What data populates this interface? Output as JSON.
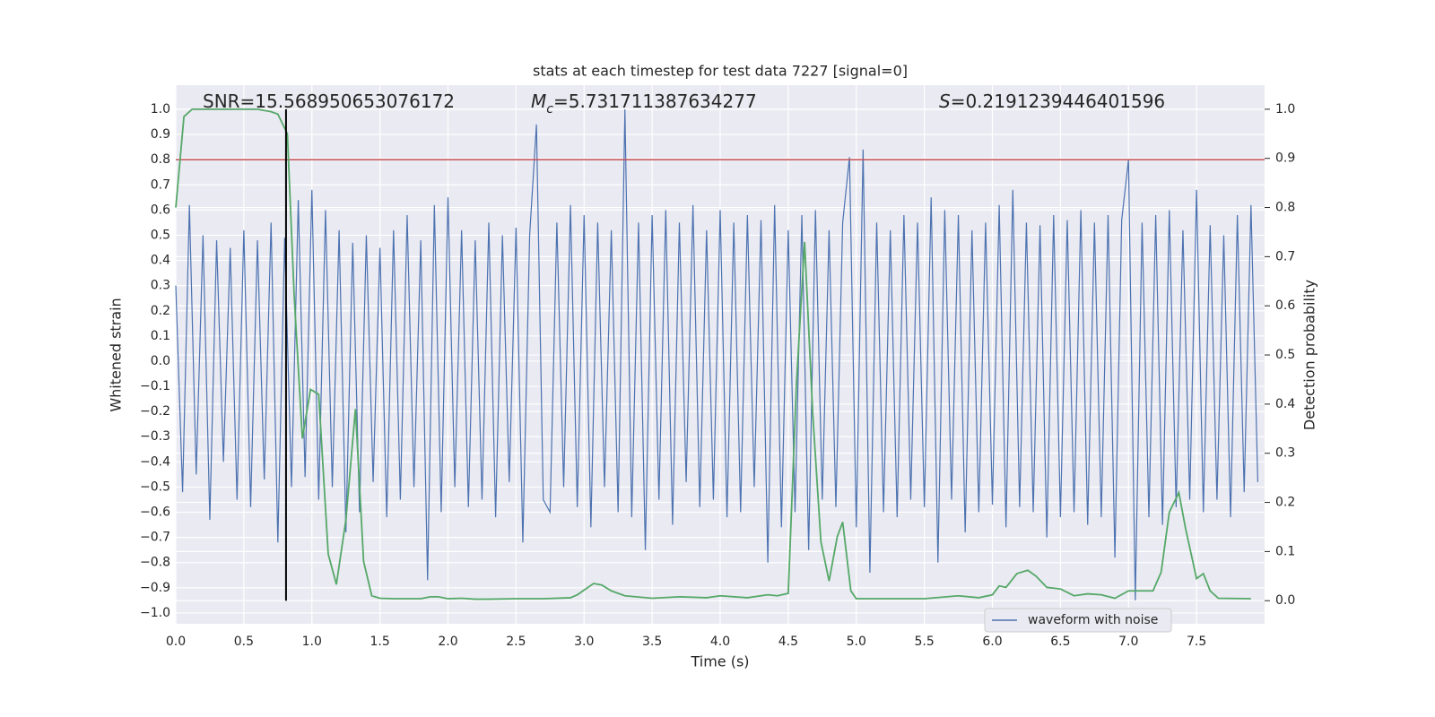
{
  "chart_data": {
    "type": "line",
    "title": "stats at each timestep for test data 7227 [signal=0]",
    "x_label": "Time (s)",
    "y_label": "Whitened strain",
    "y2_label": "Detection probability",
    "annotations": [
      {
        "text": "SNR=15.568950653076172"
      },
      {
        "symbol": "M",
        "sub": "c",
        "text": "=5.731711387634277"
      },
      {
        "symbol": "S",
        "text": "=0.2191239446401596"
      }
    ],
    "xlim": [
      0,
      8
    ],
    "ylim": [
      -1.043,
      1.096
    ],
    "y2lim": [
      -0.047,
      1.049
    ],
    "grid": true,
    "legend": "lower right",
    "xticks": [
      {
        "value": 0,
        "label": "0.0"
      },
      {
        "value": 0.5,
        "label": "0.5"
      },
      {
        "value": 1,
        "label": "1.0"
      },
      {
        "value": 1.5,
        "label": "1.5"
      },
      {
        "value": 2,
        "label": "2.0"
      },
      {
        "value": 2.5,
        "label": "2.5"
      },
      {
        "value": 3,
        "label": "3.0"
      },
      {
        "value": 3.5,
        "label": "3.5"
      },
      {
        "value": 4,
        "label": "4.0"
      },
      {
        "value": 4.5,
        "label": "4.5"
      },
      {
        "value": 5,
        "label": "5.0"
      },
      {
        "value": 5.5,
        "label": "5.5"
      },
      {
        "value": 6,
        "label": "6.0"
      },
      {
        "value": 6.5,
        "label": "6.5"
      },
      {
        "value": 7,
        "label": "7.0"
      },
      {
        "value": 7.5,
        "label": "7.5"
      }
    ],
    "yticks": [
      {
        "value": -1,
        "label": "−1.0"
      },
      {
        "value": -0.9,
        "label": "−0.9"
      },
      {
        "value": -0.8,
        "label": "−0.8"
      },
      {
        "value": -0.7,
        "label": "−0.7"
      },
      {
        "value": -0.6,
        "label": "−0.6"
      },
      {
        "value": -0.5,
        "label": "−0.5"
      },
      {
        "value": -0.4,
        "label": "−0.4"
      },
      {
        "value": -0.3,
        "label": "−0.3"
      },
      {
        "value": -0.2,
        "label": "−0.2"
      },
      {
        "value": -0.1,
        "label": "−0.1"
      },
      {
        "value": 0,
        "label": "0.0"
      },
      {
        "value": 0.1,
        "label": "0.1"
      },
      {
        "value": 0.2,
        "label": "0.2"
      },
      {
        "value": 0.3,
        "label": "0.3"
      },
      {
        "value": 0.4,
        "label": "0.4"
      },
      {
        "value": 0.5,
        "label": "0.5"
      },
      {
        "value": 0.6,
        "label": "0.6"
      },
      {
        "value": 0.7,
        "label": "0.7"
      },
      {
        "value": 0.8,
        "label": "0.8"
      },
      {
        "value": 0.9,
        "label": "0.9"
      },
      {
        "value": 1,
        "label": "1.0"
      }
    ],
    "y2ticks": [
      {
        "value": 0,
        "label": "0.0"
      },
      {
        "value": 0.1,
        "label": "0.1"
      },
      {
        "value": 0.2,
        "label": "0.2"
      },
      {
        "value": 0.3,
        "label": "0.3"
      },
      {
        "value": 0.4,
        "label": "0.4"
      },
      {
        "value": 0.5,
        "label": "0.5"
      },
      {
        "value": 0.6,
        "label": "0.6"
      },
      {
        "value": 0.7,
        "label": "0.7"
      },
      {
        "value": 0.8,
        "label": "0.8"
      },
      {
        "value": 0.9,
        "label": "0.9"
      },
      {
        "value": 1,
        "label": "1.0"
      }
    ],
    "hline": {
      "y": 0.8,
      "color": "#c44e52"
    },
    "vline": {
      "x": 0.81,
      "ymin": 0,
      "ymax": 1,
      "axis": "y2",
      "color": "#000000"
    },
    "series": [
      {
        "name": "waveform with noise",
        "color": "#4c72b0",
        "x": [
          0,
          0.05,
          0.1,
          0.15,
          0.2,
          0.25,
          0.3,
          0.35,
          0.4,
          0.45,
          0.5,
          0.55,
          0.6,
          0.65,
          0.7,
          0.75,
          0.8,
          0.85,
          0.9,
          0.95,
          1,
          1.05,
          1.1,
          1.15,
          1.2,
          1.25,
          1.3,
          1.35,
          1.4,
          1.45,
          1.5,
          1.55,
          1.6,
          1.65,
          1.7,
          1.75,
          1.8,
          1.85,
          1.9,
          1.95,
          2,
          2.05,
          2.1,
          2.15,
          2.2,
          2.25,
          2.3,
          2.35,
          2.4,
          2.45,
          2.5,
          2.55,
          2.6,
          2.65,
          2.7,
          2.75,
          2.8,
          2.85,
          2.9,
          2.95,
          3,
          3.05,
          3.1,
          3.15,
          3.2,
          3.25,
          3.3,
          3.35,
          3.4,
          3.45,
          3.5,
          3.55,
          3.6,
          3.65,
          3.7,
          3.75,
          3.8,
          3.85,
          3.9,
          3.95,
          4,
          4.05,
          4.1,
          4.15,
          4.2,
          4.25,
          4.3,
          4.35,
          4.4,
          4.45,
          4.5,
          4.55,
          4.6,
          4.65,
          4.7,
          4.75,
          4.8,
          4.85,
          4.9,
          4.95,
          5,
          5.05,
          5.1,
          5.15,
          5.2,
          5.25,
          5.3,
          5.35,
          5.4,
          5.45,
          5.5,
          5.55,
          5.6,
          5.65,
          5.7,
          5.75,
          5.8,
          5.85,
          5.9,
          5.95,
          6,
          6.05,
          6.1,
          6.15,
          6.2,
          6.25,
          6.3,
          6.35,
          6.4,
          6.45,
          6.5,
          6.55,
          6.6,
          6.65,
          6.7,
          6.75,
          6.8,
          6.85,
          6.9,
          6.95,
          7,
          7.05,
          7.1,
          7.15,
          7.2,
          7.25,
          7.3,
          7.35,
          7.4,
          7.45,
          7.5,
          7.55,
          7.6,
          7.65,
          7.7,
          7.75,
          7.8,
          7.85,
          7.9,
          7.95
        ],
        "values": [
          0.3,
          -0.52,
          0.62,
          -0.45,
          0.5,
          -0.63,
          0.48,
          -0.4,
          0.45,
          -0.55,
          0.52,
          -0.58,
          0.48,
          -0.47,
          0.55,
          -0.72,
          0.49,
          -0.5,
          0.64,
          -0.46,
          0.68,
          -0.55,
          0.6,
          -0.5,
          0.52,
          -0.68,
          0.47,
          -0.6,
          0.5,
          -0.48,
          0.45,
          -0.62,
          0.52,
          -0.55,
          0.58,
          -0.5,
          0.48,
          -0.87,
          0.62,
          -0.6,
          0.65,
          -0.5,
          0.52,
          -0.58,
          0.48,
          -0.55,
          0.55,
          -0.62,
          0.5,
          -0.48,
          0.53,
          -0.72,
          0.5,
          0.94,
          -0.55,
          -0.6,
          0.55,
          -0.5,
          0.62,
          -0.58,
          0.58,
          -0.66,
          0.55,
          -0.5,
          0.52,
          -0.6,
          1.0,
          -0.62,
          0.55,
          -0.75,
          0.58,
          -0.55,
          0.6,
          -0.65,
          0.55,
          -0.48,
          0.62,
          -0.58,
          0.52,
          -0.55,
          0.6,
          -0.62,
          0.55,
          -0.6,
          0.58,
          -0.5,
          0.56,
          -0.8,
          0.62,
          -0.66,
          0.52,
          -0.6,
          0.58,
          -0.75,
          0.6,
          -0.55,
          0.52,
          -0.58,
          0.55,
          0.81,
          -0.66,
          0.84,
          -0.84,
          0.55,
          -0.6,
          0.52,
          -0.62,
          0.58,
          -0.55,
          0.55,
          -0.58,
          0.65,
          -0.8,
          0.6,
          -0.55,
          0.58,
          -0.68,
          0.52,
          -0.6,
          0.55,
          -0.57,
          0.62,
          -0.66,
          0.68,
          -0.58,
          0.55,
          -0.6,
          0.54,
          -0.7,
          0.58,
          -0.62,
          0.56,
          -0.6,
          0.6,
          -0.65,
          0.55,
          -0.62,
          0.58,
          -0.78,
          0.56,
          0.8,
          -0.95,
          0.55,
          -0.62,
          0.58,
          -0.65,
          0.6,
          -0.58,
          0.52,
          -0.55,
          0.68,
          -0.6,
          0.54,
          -0.55,
          0.5,
          -0.62,
          0.58,
          -0.52,
          0.62,
          -0.48
        ]
      },
      {
        "color": "#55a868",
        "axis": "y2",
        "x": [
          0,
          0.06,
          0.12,
          0.2,
          0.3,
          0.4,
          0.5,
          0.6,
          0.7,
          0.75,
          0.82,
          0.87,
          0.93,
          0.99,
          1.05,
          1.12,
          1.18,
          1.25,
          1.32,
          1.38,
          1.44,
          1.5,
          1.6,
          1.7,
          1.8,
          1.87,
          1.93,
          2.0,
          2.1,
          2.2,
          2.3,
          2.5,
          2.7,
          2.9,
          2.95,
          3.07,
          3.13,
          3.2,
          3.3,
          3.5,
          3.7,
          3.9,
          4.0,
          4.2,
          4.35,
          4.42,
          4.5,
          4.56,
          4.62,
          4.68,
          4.74,
          4.8,
          4.86,
          4.9,
          4.96,
          5.0,
          5.2,
          5.5,
          5.75,
          5.9,
          6.0,
          6.05,
          6.1,
          6.18,
          6.26,
          6.32,
          6.4,
          6.5,
          6.6,
          6.7,
          6.8,
          6.9,
          7.0,
          7.1,
          7.18,
          7.24,
          7.3,
          7.37,
          7.42,
          7.5,
          7.55,
          7.6,
          7.66,
          7.9
        ],
        "values": [
          0.8,
          0.985,
          1.0,
          1.0,
          1.0,
          1.0,
          1.0,
          1.0,
          0.995,
          0.99,
          0.95,
          0.62,
          0.33,
          0.43,
          0.42,
          0.095,
          0.033,
          0.165,
          0.39,
          0.08,
          0.01,
          0.005,
          0.004,
          0.004,
          0.004,
          0.008,
          0.008,
          0.004,
          0.005,
          0.003,
          0.003,
          0.004,
          0.004,
          0.006,
          0.012,
          0.035,
          0.032,
          0.02,
          0.01,
          0.005,
          0.008,
          0.006,
          0.01,
          0.006,
          0.012,
          0.01,
          0.015,
          0.44,
          0.73,
          0.38,
          0.12,
          0.04,
          0.13,
          0.16,
          0.02,
          0.004,
          0.004,
          0.004,
          0.01,
          0.006,
          0.012,
          0.03,
          0.027,
          0.055,
          0.062,
          0.05,
          0.027,
          0.024,
          0.01,
          0.014,
          0.012,
          0.005,
          0.02,
          0.02,
          0.02,
          0.058,
          0.18,
          0.22,
          0.146,
          0.045,
          0.055,
          0.02,
          0.005,
          0.004
        ]
      }
    ]
  }
}
